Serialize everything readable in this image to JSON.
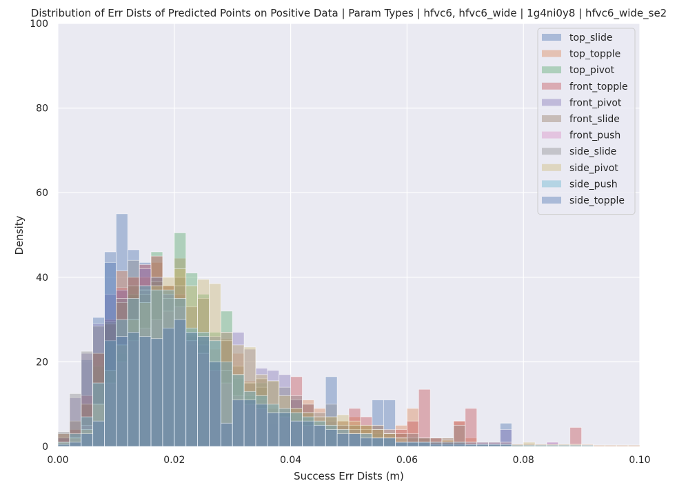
{
  "chart_data": {
    "type": "histogram",
    "title": "Distribution of Err Dists of Predicted Points on Positive Data | Param Types | hfvc6, hfvc6_wide | 1g4ni0y8 | hfvc6_wide_se2",
    "xlabel": "Success Err Dists (m)",
    "ylabel": "Density",
    "xlim": [
      0.0,
      0.1
    ],
    "ylim": [
      0,
      100
    ],
    "xticks": [
      "0.00",
      "0.02",
      "0.04",
      "0.06",
      "0.08",
      "0.10"
    ],
    "yticks": [
      "0",
      "20",
      "40",
      "60",
      "80",
      "100"
    ],
    "grid": true,
    "legend_position": "top-right",
    "bin_width": 0.002,
    "bin_starts": [
      0.0,
      0.002,
      0.004,
      0.006,
      0.008,
      0.01,
      0.012,
      0.014,
      0.016,
      0.018,
      0.02,
      0.022,
      0.024,
      0.026,
      0.028,
      0.03,
      0.032,
      0.034,
      0.036,
      0.038,
      0.04,
      0.042,
      0.044,
      0.046,
      0.048,
      0.05,
      0.052,
      0.054,
      0.056,
      0.058,
      0.06,
      0.062,
      0.064,
      0.066,
      0.068,
      0.07,
      0.072,
      0.074,
      0.076,
      0.078,
      0.08,
      0.082,
      0.084,
      0.086,
      0.088,
      0.09,
      0.092,
      0.094,
      0.096,
      0.098
    ],
    "series": [
      {
        "name": "top_slide",
        "color": "#4c72b0",
        "values": [
          2,
          0,
          20.5,
          30.5,
          46,
          55,
          46.5,
          43.5,
          38,
          36,
          35,
          26,
          25,
          0,
          0,
          0,
          0,
          0,
          0,
          0,
          0,
          0,
          0,
          16.5,
          0,
          0,
          0,
          11,
          11,
          0,
          0,
          0,
          0,
          0,
          0,
          0,
          0,
          0,
          5.5,
          0,
          0,
          0,
          0,
          0,
          0,
          0,
          0,
          0,
          0,
          0
        ]
      },
      {
        "name": "top_topple",
        "color": "#dd8452",
        "values": [
          3,
          4,
          10,
          22,
          29,
          41.5,
          40,
          40,
          43.5,
          38,
          44.5,
          26.5,
          26,
          23,
          25.5,
          22,
          15.5,
          16,
          9,
          9,
          11,
          11,
          9,
          5,
          6,
          7,
          5,
          5,
          4,
          5,
          9,
          2,
          2,
          2,
          6,
          2,
          0,
          0,
          0,
          0,
          0,
          0,
          0,
          0,
          0,
          0,
          0,
          0,
          0,
          0
        ]
      },
      {
        "name": "top_pivot",
        "color": "#55a868",
        "values": [
          1,
          2,
          5,
          19,
          25,
          22,
          36,
          38,
          46,
          38,
          50.5,
          41,
          36,
          27,
          32,
          16,
          12,
          15,
          5.5,
          8,
          8,
          7,
          5,
          4,
          4,
          5,
          5,
          3,
          2,
          1,
          1,
          1,
          1,
          0.5,
          0.5,
          0.5,
          0.5,
          0,
          0,
          0,
          0,
          0,
          0,
          0,
          0,
          0,
          0,
          0,
          0,
          0
        ]
      },
      {
        "name": "front_topple",
        "color": "#c44e52",
        "values": [
          2,
          4,
          12,
          22,
          30,
          37.5,
          40,
          43,
          45,
          38,
          36,
          24,
          22,
          18,
          20,
          11,
          11,
          11,
          9,
          9,
          16.5,
          10,
          5,
          5,
          5,
          9,
          7,
          4,
          3,
          4,
          6,
          13.5,
          2,
          1.5,
          6,
          9,
          0.5,
          0.5,
          0.5,
          0.5,
          0,
          0,
          0,
          0,
          4.5,
          0,
          0,
          0,
          0,
          0
        ]
      },
      {
        "name": "front_pivot",
        "color": "#8172b3",
        "values": [
          2,
          11.5,
          22,
          29,
          36,
          37,
          30,
          42,
          40,
          36,
          35,
          25,
          24,
          26,
          27,
          27,
          23,
          18.5,
          18,
          17,
          11,
          8,
          7,
          6,
          5,
          4,
          3,
          2,
          1,
          1,
          1,
          1,
          1,
          1,
          1,
          1,
          1,
          1,
          4,
          0.5,
          0.5,
          0.5,
          1,
          0,
          0,
          0,
          0,
          0,
          0,
          0
        ]
      },
      {
        "name": "front_slide",
        "color": "#937860",
        "values": [
          3,
          6,
          10,
          22,
          29,
          34,
          38,
          36,
          39,
          32,
          40,
          33,
          35,
          20,
          25,
          19,
          15,
          14,
          10,
          8,
          9,
          8,
          6,
          7,
          6,
          5,
          4,
          4,
          3,
          3,
          2,
          2,
          1,
          1,
          1,
          1,
          0.5,
          0.5,
          0.5,
          0.5,
          0,
          0,
          0,
          0,
          0,
          0,
          0,
          0,
          0,
          0
        ]
      },
      {
        "name": "front_push",
        "color": "#da8bc3",
        "values": [
          1,
          2,
          5,
          10,
          15,
          20,
          25,
          28,
          30,
          32,
          33,
          25,
          22,
          18,
          15,
          12,
          10,
          9,
          8,
          7,
          6,
          5,
          5,
          4,
          4,
          3,
          3,
          2,
          2,
          2,
          1,
          1,
          1,
          1,
          1,
          1,
          1,
          1,
          1,
          0.5,
          0.5,
          0.5,
          1,
          0.5,
          0.5,
          0.5,
          0.3,
          0.3,
          0.3,
          0.3
        ]
      },
      {
        "name": "side_slide",
        "color": "#8c8c8c",
        "values": [
          3.5,
          12.5,
          22.5,
          28.5,
          29.5,
          35,
          44,
          37,
          40,
          35,
          38,
          25,
          22,
          20,
          18,
          17,
          15,
          16,
          15.5,
          14,
          12,
          10,
          8,
          10,
          5,
          4,
          3,
          5,
          3,
          2,
          3,
          2,
          2,
          2,
          5,
          1,
          1,
          1,
          1,
          0.5,
          0.5,
          0.5,
          0.5,
          0.5,
          0.5,
          0,
          0,
          0,
          0,
          0
        ]
      },
      {
        "name": "side_pivot",
        "color": "#ccb974",
        "values": [
          1,
          2,
          4,
          10,
          18,
          24,
          30,
          34,
          38,
          40,
          42,
          38,
          39.5,
          38.5,
          27,
          24,
          23.5,
          17,
          15.5,
          12,
          9,
          8,
          7,
          7,
          7.5,
          6,
          5,
          4,
          3,
          2,
          1,
          1,
          1,
          1.5,
          1,
          0.5,
          0.5,
          0.5,
          0.5,
          0.5,
          1,
          0.5,
          0.5,
          0.5,
          0.5,
          0.5,
          0.3,
          0.3,
          0.3,
          0.3
        ]
      },
      {
        "name": "side_push",
        "color": "#64b5cd",
        "values": [
          1,
          3,
          7,
          15,
          25,
          30,
          35,
          38,
          37,
          37,
          35,
          28,
          27,
          25,
          20,
          17,
          13,
          12,
          10,
          9,
          8,
          7,
          6,
          5,
          4,
          3,
          3,
          2,
          2,
          1,
          1,
          1,
          0.5,
          0.5,
          0.5,
          0.5,
          0.5,
          0.5,
          0.5,
          0.3,
          0.3,
          0.3,
          0.3,
          0.3,
          0.3,
          0.3,
          0,
          0,
          0,
          0
        ]
      },
      {
        "name": "side_topple",
        "color": "#4c72b0",
        "values": [
          0.5,
          1,
          3,
          6,
          43.5,
          26,
          27,
          26,
          25.5,
          28,
          30,
          27,
          26,
          20,
          5.5,
          11,
          11,
          10,
          8,
          8,
          6,
          6,
          5,
          4,
          3,
          3,
          2,
          2,
          2,
          1,
          1,
          1,
          1,
          1,
          1,
          0.5,
          0.5,
          0.5,
          0.5,
          0,
          0,
          0,
          0,
          0,
          0,
          0,
          0,
          0,
          0,
          0
        ]
      }
    ]
  }
}
